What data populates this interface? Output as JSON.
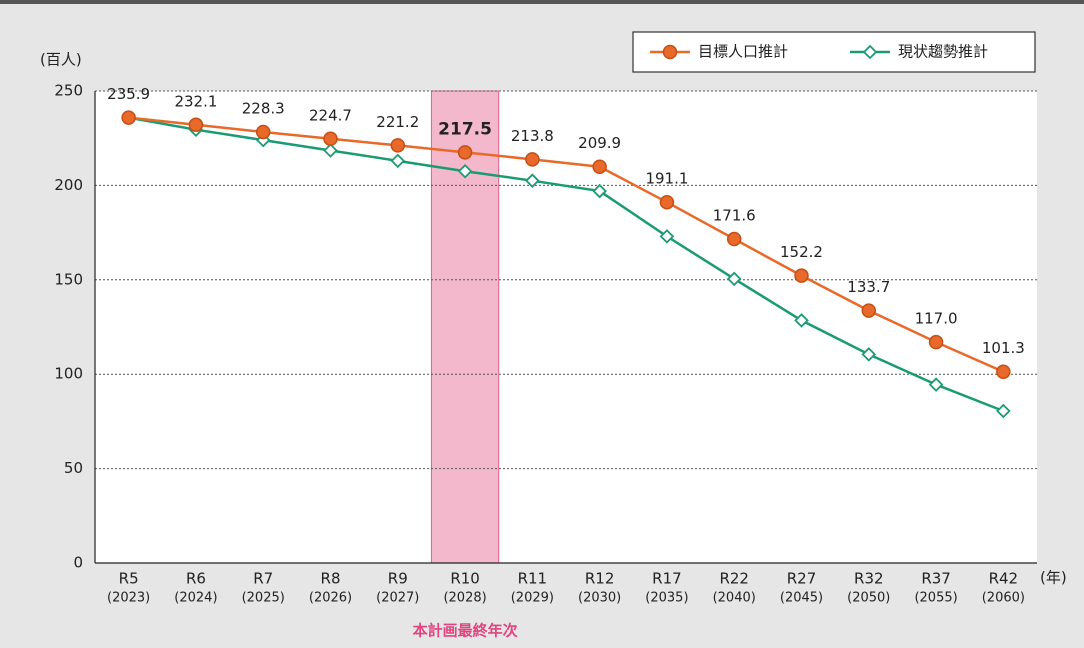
{
  "chart_data": {
    "type": "line",
    "y_unit_label": "(百人)",
    "x_unit_label": "(年)",
    "annotation": "本計画最終年次",
    "highlight_index": 5,
    "highlight_color": "#f4b8cc",
    "categories": [
      "R5",
      "R6",
      "R7",
      "R8",
      "R9",
      "R10",
      "R11",
      "R12",
      "R17",
      "R22",
      "R27",
      "R32",
      "R37",
      "R42"
    ],
    "category_years": [
      "(2023)",
      "(2024)",
      "(2025)",
      "(2026)",
      "(2027)",
      "(2028)",
      "(2029)",
      "(2030)",
      "(2035)",
      "(2040)",
      "(2045)",
      "(2050)",
      "(2055)",
      "(2060)"
    ],
    "series": [
      {
        "name": "目標人口推計",
        "color": "#e8692a",
        "marker": "circle",
        "values": [
          235.9,
          232.1,
          228.3,
          224.7,
          221.2,
          217.5,
          213.8,
          209.9,
          191.1,
          171.6,
          152.2,
          133.7,
          117.0,
          101.3
        ],
        "value_labels": [
          "235.9",
          "232.1",
          "228.3",
          "224.7",
          "221.2",
          "217.5",
          "213.8",
          "209.9",
          "191.1",
          "171.6",
          "152.2",
          "133.7",
          "117.0",
          "101.3"
        ]
      },
      {
        "name": "現状趨勢推計",
        "color": "#1a9b73",
        "marker": "diamond",
        "values": [
          235.9,
          229.5,
          224,
          218.5,
          213,
          207.5,
          202.5,
          197,
          173,
          150.5,
          128.5,
          110.5,
          94.5,
          80.5
        ]
      }
    ],
    "ylim": [
      0,
      250
    ],
    "yticks": [
      0,
      50,
      100,
      150,
      200,
      250
    ],
    "grid": true
  }
}
